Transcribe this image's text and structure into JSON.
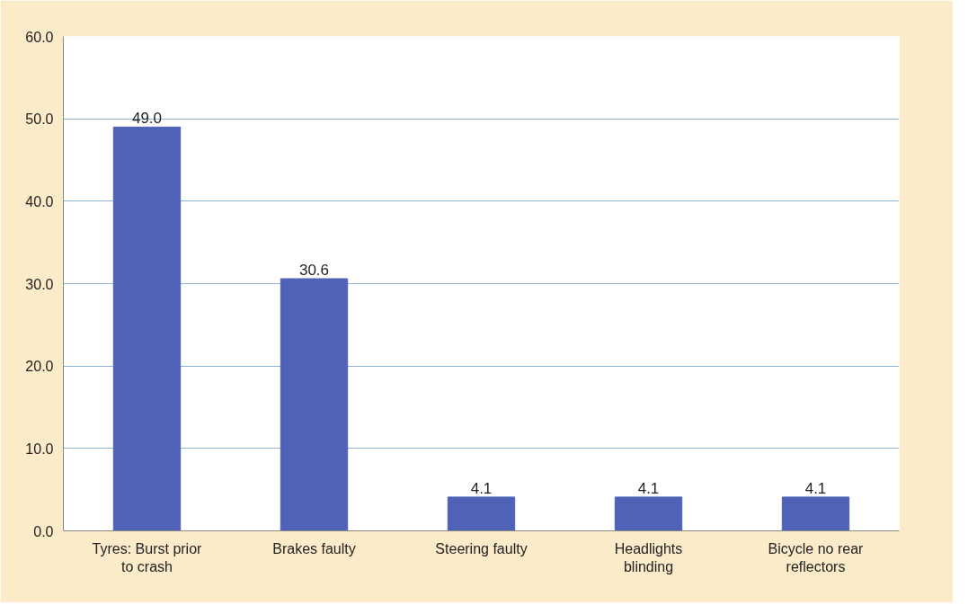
{
  "chart_data": {
    "type": "bar",
    "categories": [
      "Tyres: Burst prior to crash",
      "Brakes faulty",
      "Steering faulty",
      "Headlights blinding",
      "Bicycle no rear reflectors"
    ],
    "values": [
      49.0,
      30.6,
      4.1,
      4.1,
      4.1
    ],
    "color": "#4f62b8",
    "value_labels": [
      "49.0",
      "30.6",
      "4.1",
      "4.1",
      "4.1"
    ],
    "ylim": [
      0,
      60
    ],
    "yticks": [
      {
        "value": 0,
        "label": "0.0"
      },
      {
        "value": 10,
        "label": "10.0"
      },
      {
        "value": 20,
        "label": "20.0"
      },
      {
        "value": 30,
        "label": "30.0"
      },
      {
        "value": 40,
        "label": "40.0"
      },
      {
        "value": 50,
        "label": "50.0"
      },
      {
        "value": 60,
        "label": "60.0"
      }
    ],
    "grid": "y"
  }
}
